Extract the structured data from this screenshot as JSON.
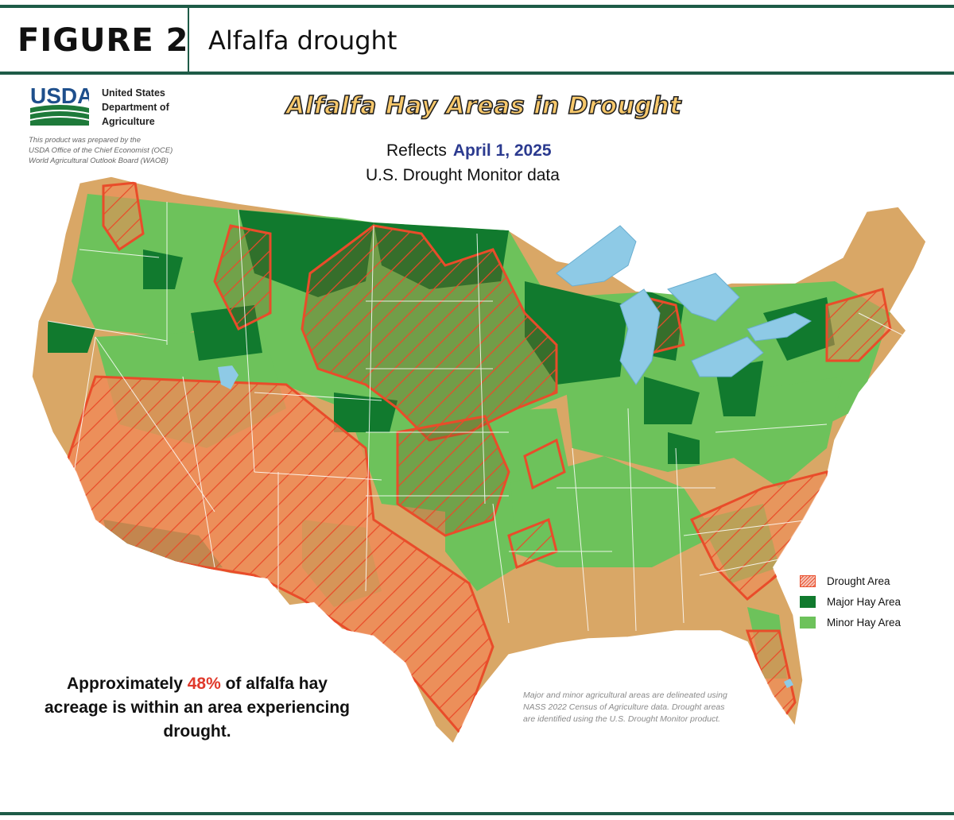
{
  "header": {
    "figure_label": "FIGURE 2",
    "figure_title": "Alfalfa drought"
  },
  "usda": {
    "logo_text": "USDA",
    "name_line1": "United States",
    "name_line2": "Department of",
    "name_line3": "Agriculture",
    "prepared_line1": "This product was prepared by the",
    "prepared_line2": "USDA Office of the Chief Economist (OCE)",
    "prepared_line3": "World Agricultural Outlook Board (WAOB)"
  },
  "map": {
    "title": "Alfalfa Hay Areas in Drought",
    "reflects_prefix": "Reflects",
    "date": "April 1, 2025",
    "subtitle": "U.S. Drought Monitor data"
  },
  "legend": {
    "items": [
      {
        "label": "Drought Area",
        "color": "#e94c2a"
      },
      {
        "label": "Major Hay Area",
        "color": "#117a2e"
      },
      {
        "label": "Minor Hay Area",
        "color": "#6dc25b"
      }
    ]
  },
  "summary": {
    "prefix": "Approximately",
    "percent": "48%",
    "suffix": "of alfalfa hay acreage is within an area experiencing drought."
  },
  "note": "Major and minor agricultural areas are delineated using NASS 2022 Census of Agriculture data.  Drought areas are identified using the U.S. Drought Monitor product.",
  "colors": {
    "base_land": "#d9a766",
    "major_hay": "#117a2e",
    "minor_hay": "#6dc25b",
    "drought": "#e94c2a",
    "drought_fill": "#f08a57",
    "water": "#8ecae6",
    "rule": "#1e5b47"
  }
}
